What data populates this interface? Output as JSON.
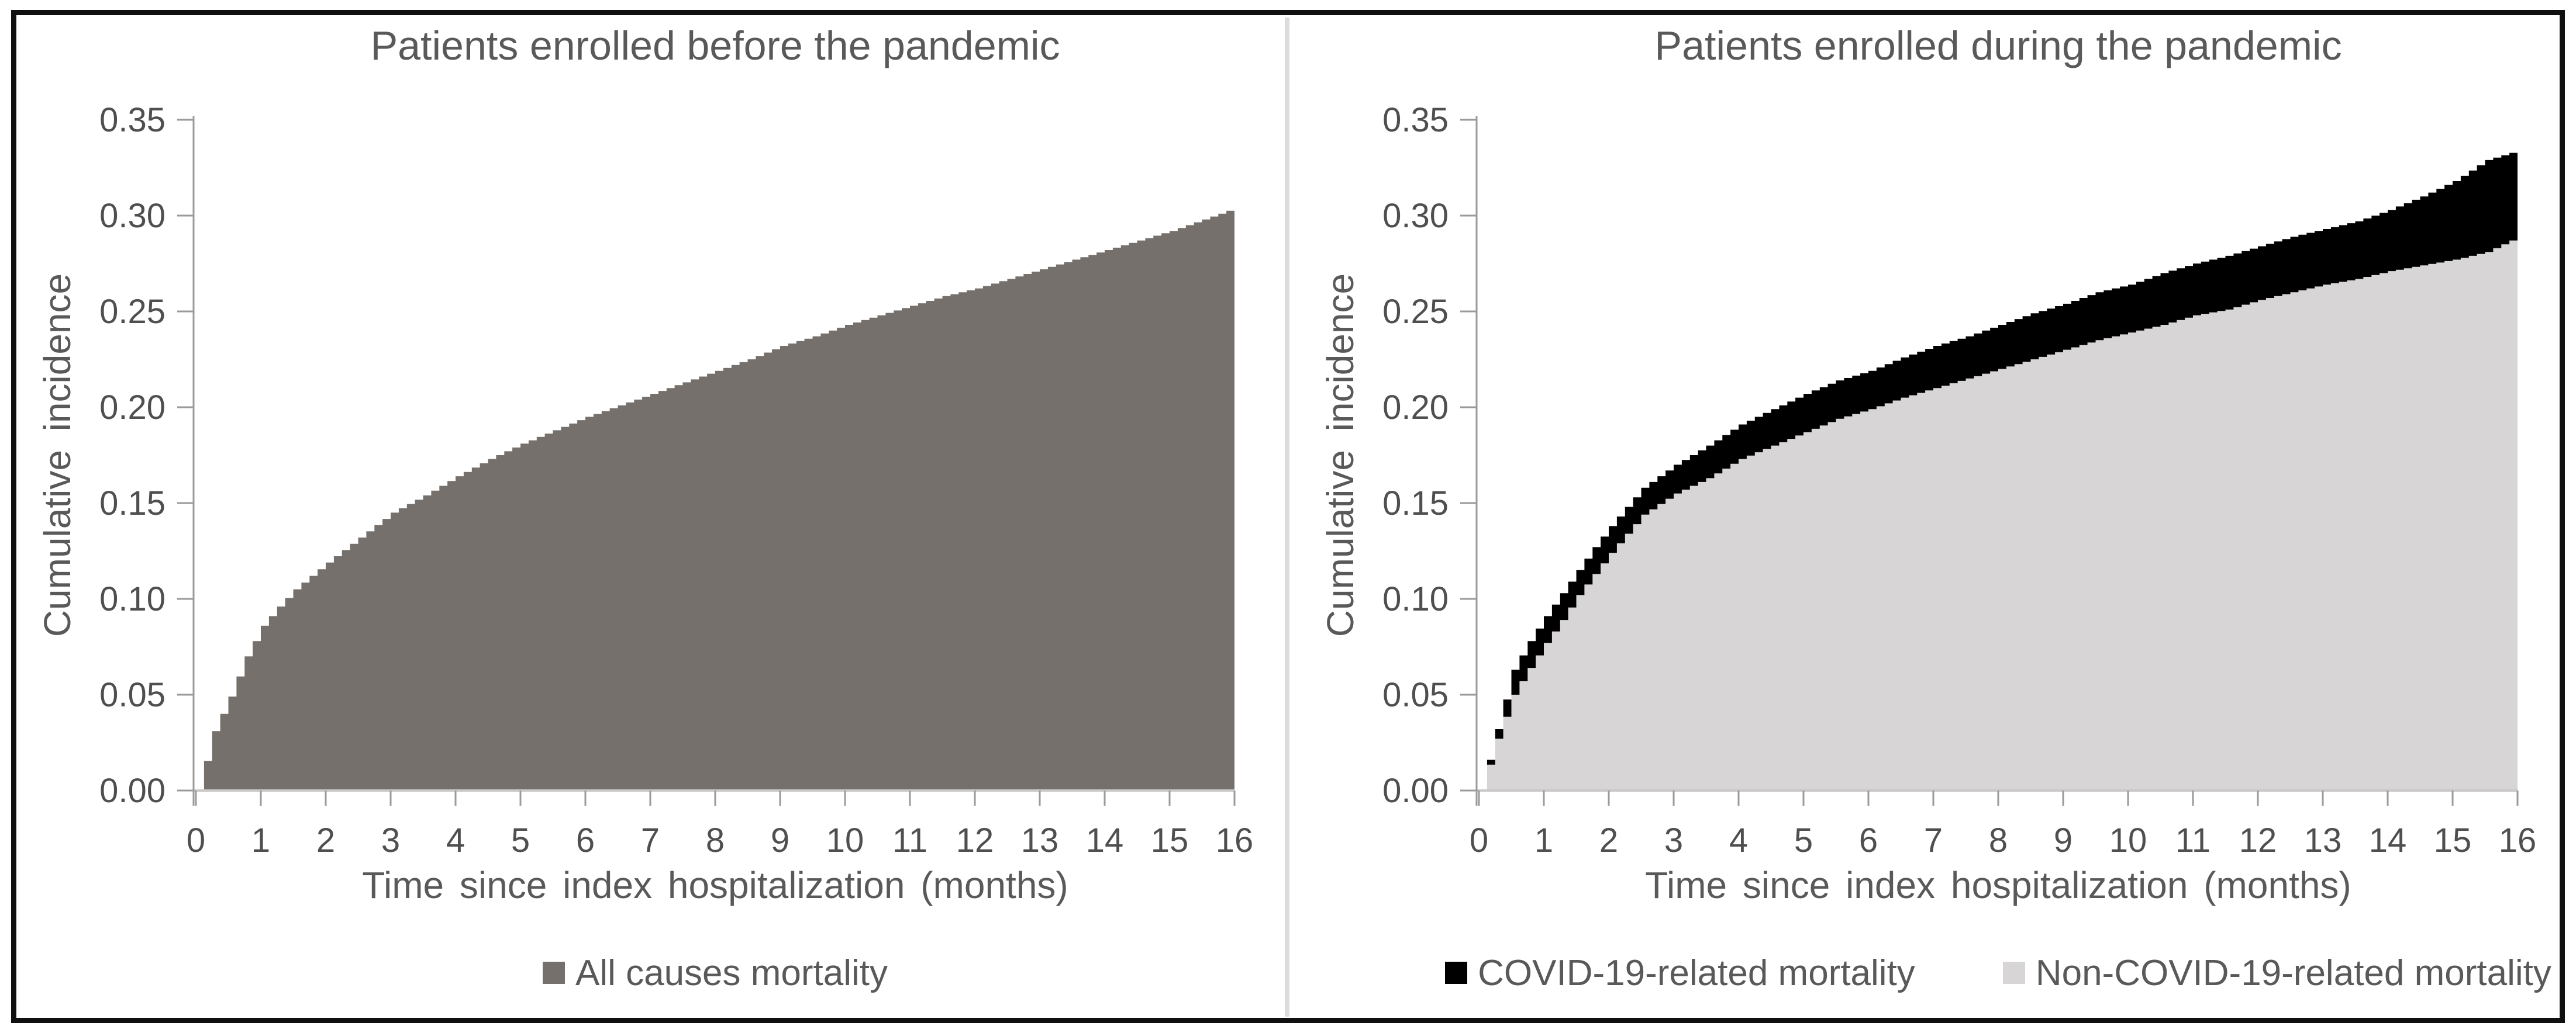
{
  "page": {
    "background": "#ffffff",
    "border_color": "#101010",
    "divider_color": "#dcdcdc",
    "tick_label_color": "#4f4f4f",
    "axis_line_color": "#9a9a9a",
    "baseline_color": "#c9c9c9",
    "text_color": "#595959"
  },
  "chart_data": [
    {
      "type": "area",
      "panel": "left",
      "title": "Patients enrolled before the pandemic",
      "xlabel": "Time since index hospitalization (months)",
      "ylabel": "Cumulative incidence",
      "xlim": [
        0,
        16
      ],
      "ylim": [
        0,
        0.35
      ],
      "grid": false,
      "legend_position": "bottom",
      "xticks": [
        "0",
        "1",
        "2",
        "3",
        "4",
        "5",
        "6",
        "7",
        "8",
        "9",
        "10",
        "11",
        "12",
        "13",
        "14",
        "15",
        "16"
      ],
      "yticks": [
        "0.00",
        "0.05",
        "0.10",
        "0.15",
        "0.20",
        "0.25",
        "0.30",
        "0.35"
      ],
      "x": [
        0,
        0.25,
        0.5,
        0.75,
        1,
        1.25,
        1.5,
        1.75,
        2,
        2.5,
        3,
        3.5,
        4,
        4.5,
        5,
        5.5,
        6,
        6.5,
        7,
        7.5,
        8,
        8.5,
        9,
        9.5,
        10,
        10.5,
        11,
        11.5,
        12,
        12.5,
        13,
        13.5,
        14,
        14.5,
        15,
        15.5,
        16
      ],
      "layers": [
        {
          "name": "All causes mortality",
          "color": "#75706c",
          "baseline": "zero",
          "values": [
            0,
            0.031,
            0.049,
            0.07,
            0.086,
            0.096,
            0.105,
            0.112,
            0.119,
            0.132,
            0.145,
            0.154,
            0.164,
            0.173,
            0.181,
            0.188,
            0.195,
            0.201,
            0.207,
            0.213,
            0.219,
            0.225,
            0.232,
            0.237,
            0.243,
            0.248,
            0.253,
            0.258,
            0.262,
            0.267,
            0.272,
            0.277,
            0.282,
            0.287,
            0.292,
            0.298,
            0.304
          ]
        }
      ],
      "legend": [
        {
          "label": "All causes mortality",
          "color": "#75706c"
        }
      ]
    },
    {
      "type": "area",
      "panel": "right",
      "stacked": true,
      "title": "Patients enrolled during the pandemic",
      "xlabel": "Time since index hospitalization (months)",
      "ylabel": "Cumulative incidence",
      "xlim": [
        0,
        16
      ],
      "ylim": [
        0,
        0.35
      ],
      "grid": false,
      "legend_position": "bottom",
      "xticks": [
        "0",
        "1",
        "2",
        "3",
        "4",
        "5",
        "6",
        "7",
        "8",
        "9",
        "10",
        "11",
        "12",
        "13",
        "14",
        "15",
        "16"
      ],
      "yticks": [
        "0.00",
        "0.05",
        "0.10",
        "0.15",
        "0.20",
        "0.25",
        "0.30",
        "0.35"
      ],
      "x": [
        0,
        0.25,
        0.5,
        0.75,
        1,
        1.25,
        1.5,
        1.75,
        2,
        2.5,
        3,
        3.5,
        4,
        4.5,
        5,
        5.5,
        6,
        6.5,
        7,
        7.5,
        8,
        8.5,
        9,
        9.5,
        10,
        10.5,
        11,
        11.5,
        12,
        12.5,
        13,
        13.5,
        14,
        14.5,
        15,
        15.5,
        16
      ],
      "layers": [
        {
          "name": "Non-COVID-19-related mortality",
          "color": "#d7d5d5",
          "baseline": "zero",
          "values": [
            0,
            0.027,
            0.05,
            0.064,
            0.077,
            0.089,
            0.102,
            0.113,
            0.124,
            0.144,
            0.155,
            0.163,
            0.173,
            0.18,
            0.187,
            0.194,
            0.199,
            0.205,
            0.21,
            0.215,
            0.22,
            0.225,
            0.23,
            0.235,
            0.239,
            0.243,
            0.248,
            0.251,
            0.256,
            0.26,
            0.264,
            0.267,
            0.271,
            0.274,
            0.277,
            0.281,
            0.289
          ]
        },
        {
          "name": "COVID-19-related mortality",
          "color": "#000000",
          "baseline": "previous",
          "values": [
            0,
            0.032,
            0.063,
            0.078,
            0.091,
            0.103,
            0.115,
            0.127,
            0.138,
            0.158,
            0.17,
            0.18,
            0.191,
            0.199,
            0.207,
            0.214,
            0.219,
            0.226,
            0.232,
            0.237,
            0.243,
            0.249,
            0.254,
            0.26,
            0.264,
            0.27,
            0.275,
            0.279,
            0.284,
            0.289,
            0.293,
            0.297,
            0.303,
            0.31,
            0.318,
            0.329,
            0.334
          ]
        }
      ],
      "legend": [
        {
          "label": "COVID-19-related mortality",
          "color": "#000000"
        },
        {
          "label": "Non-COVID-19-related mortality",
          "color": "#d7d5d5"
        }
      ]
    }
  ]
}
